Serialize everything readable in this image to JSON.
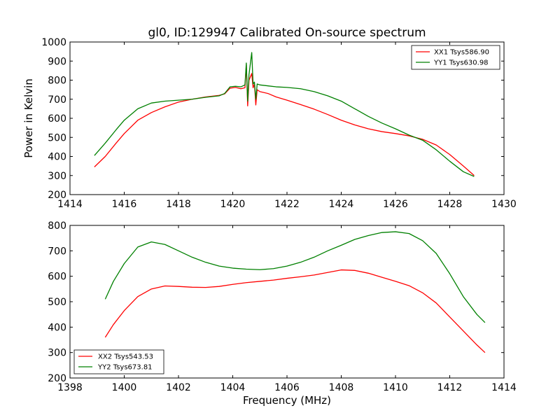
{
  "chart_data": [
    {
      "type": "line",
      "title": "gl0, ID:129947 Calibrated On-source spectrum",
      "xlabel": "",
      "ylabel": "Power in Kelvin",
      "xlim": [
        1414,
        1430
      ],
      "ylim": [
        200,
        1000
      ],
      "xticks": [
        "1414",
        "1416",
        "1418",
        "1420",
        "1422",
        "1424",
        "1426",
        "1428",
        "1430"
      ],
      "yticks": [
        "200",
        "300",
        "400",
        "500",
        "600",
        "700",
        "800",
        "900",
        "1000"
      ],
      "legend_position": "top-right",
      "grid": false,
      "series": [
        {
          "name": "XX1 Tsys586.90",
          "color": "#ff0000",
          "x": [
            1414.9,
            1415.3,
            1415.7,
            1416.0,
            1416.5,
            1417.0,
            1417.5,
            1418.0,
            1418.5,
            1419.0,
            1419.5,
            1419.7,
            1419.9,
            1420.1,
            1420.3,
            1420.45,
            1420.5,
            1420.55,
            1420.6,
            1420.7,
            1420.75,
            1420.8,
            1420.85,
            1420.9,
            1421.0,
            1421.3,
            1421.6,
            1422.0,
            1422.5,
            1423.0,
            1423.5,
            1424.0,
            1424.5,
            1425.0,
            1425.5,
            1426.0,
            1426.5,
            1427.0,
            1427.5,
            1428.0,
            1428.5,
            1428.9
          ],
          "y": [
            345,
            400,
            470,
            520,
            590,
            630,
            660,
            685,
            700,
            712,
            720,
            728,
            758,
            762,
            755,
            760,
            880,
            665,
            800,
            835,
            760,
            780,
            670,
            750,
            740,
            730,
            712,
            695,
            672,
            648,
            620,
            590,
            565,
            545,
            530,
            520,
            508,
            490,
            460,
            410,
            350,
            300
          ]
        },
        {
          "name": "YY1 Tsys630.98",
          "color": "#008000",
          "x": [
            1414.9,
            1415.3,
            1415.7,
            1416.0,
            1416.5,
            1417.0,
            1417.5,
            1418.0,
            1418.5,
            1419.0,
            1419.5,
            1419.7,
            1419.9,
            1420.1,
            1420.3,
            1420.45,
            1420.5,
            1420.55,
            1420.6,
            1420.7,
            1420.75,
            1420.8,
            1420.85,
            1420.9,
            1421.0,
            1421.3,
            1421.6,
            1422.0,
            1422.5,
            1423.0,
            1423.5,
            1424.0,
            1424.5,
            1425.0,
            1425.5,
            1426.0,
            1426.5,
            1427.0,
            1427.5,
            1428.0,
            1428.5,
            1428.9
          ],
          "y": [
            405,
            470,
            540,
            590,
            650,
            680,
            690,
            695,
            700,
            710,
            718,
            730,
            765,
            768,
            765,
            775,
            890,
            690,
            830,
            945,
            780,
            790,
            700,
            780,
            775,
            770,
            765,
            762,
            755,
            740,
            718,
            690,
            650,
            610,
            575,
            545,
            512,
            485,
            435,
            375,
            320,
            295
          ]
        }
      ]
    },
    {
      "type": "line",
      "title": "",
      "xlabel": "Frequency (MHz)",
      "ylabel": "",
      "xlim": [
        1398,
        1414
      ],
      "ylim": [
        200,
        800
      ],
      "xticks": [
        "1398",
        "1400",
        "1402",
        "1404",
        "1406",
        "1408",
        "1410",
        "1412",
        "1414"
      ],
      "yticks": [
        "200",
        "300",
        "400",
        "500",
        "600",
        "700",
        "800"
      ],
      "legend_position": "bottom-left",
      "grid": false,
      "series": [
        {
          "name": "XX2 Tsys543.53",
          "color": "#ff0000",
          "x": [
            1399.3,
            1399.6,
            1400.0,
            1400.5,
            1401.0,
            1401.5,
            1402.0,
            1402.5,
            1403.0,
            1403.5,
            1404.0,
            1404.5,
            1405.0,
            1405.5,
            1406.0,
            1406.5,
            1407.0,
            1407.5,
            1408.0,
            1408.5,
            1409.0,
            1409.5,
            1410.0,
            1410.5,
            1411.0,
            1411.5,
            1412.0,
            1412.5,
            1413.0,
            1413.3
          ],
          "y": [
            360,
            410,
            465,
            520,
            550,
            562,
            560,
            557,
            556,
            560,
            568,
            575,
            580,
            585,
            592,
            598,
            605,
            615,
            625,
            623,
            612,
            596,
            580,
            563,
            535,
            495,
            440,
            385,
            330,
            300
          ]
        },
        {
          "name": "YY2 Tsys673.81",
          "color": "#008000",
          "x": [
            1399.3,
            1399.6,
            1400.0,
            1400.5,
            1401.0,
            1401.5,
            1402.0,
            1402.5,
            1403.0,
            1403.5,
            1404.0,
            1404.5,
            1405.0,
            1405.5,
            1406.0,
            1406.5,
            1407.0,
            1407.5,
            1408.0,
            1408.5,
            1409.0,
            1409.5,
            1410.0,
            1410.5,
            1411.0,
            1411.5,
            1412.0,
            1412.5,
            1413.0,
            1413.3
          ],
          "y": [
            510,
            580,
            650,
            715,
            735,
            725,
            700,
            675,
            655,
            640,
            632,
            628,
            626,
            630,
            640,
            655,
            675,
            700,
            722,
            745,
            760,
            772,
            775,
            768,
            740,
            690,
            610,
            520,
            450,
            418
          ]
        }
      ]
    }
  ]
}
